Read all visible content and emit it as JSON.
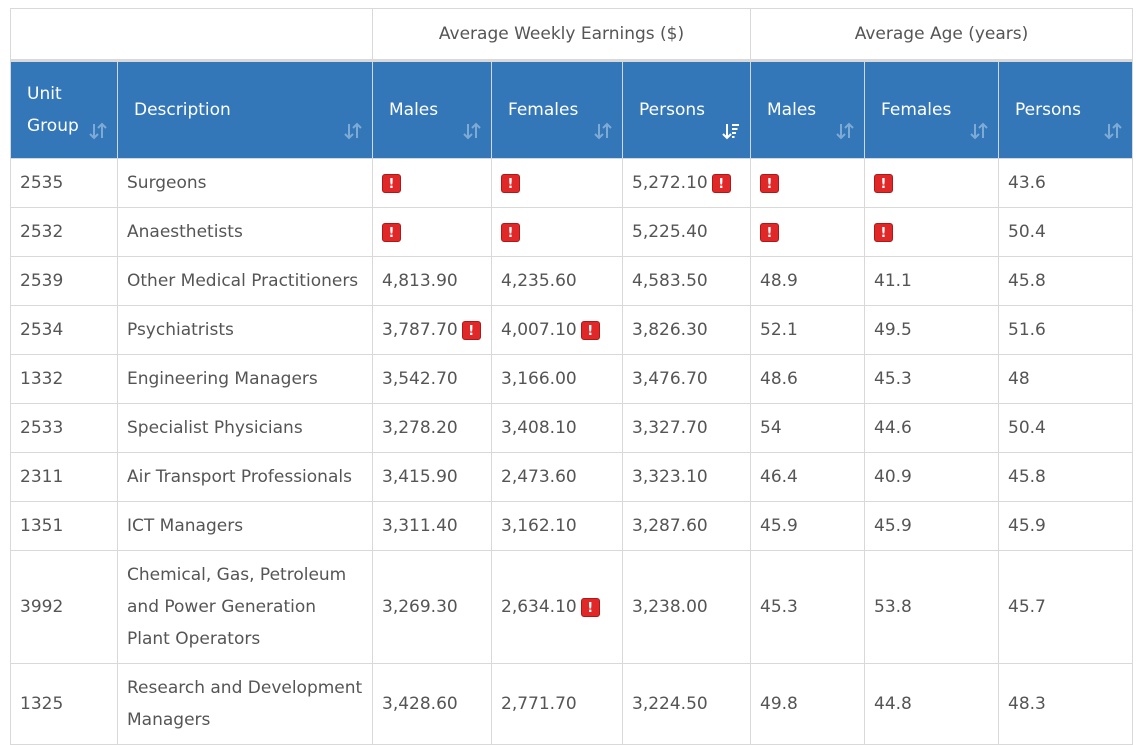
{
  "group_header": {
    "earnings": "Average Weekly Earnings ($)",
    "age": "Average Age (years)"
  },
  "columns": {
    "unit_group_line1": "Unit",
    "unit_group_line2": "Group",
    "description": "Description",
    "earn_males": "Males",
    "earn_females": "Females",
    "earn_persons": "Persons",
    "age_males": "Males",
    "age_females": "Females",
    "age_persons": "Persons"
  },
  "sort": {
    "active_column": "earn_persons",
    "direction": "descending"
  },
  "warning_glyph": "!",
  "colors": {
    "header_bg": "#3377b8",
    "warning": "#e02828"
  },
  "rows": [
    {
      "unit_group": "2535",
      "description": "Surgeons",
      "earn_males": "",
      "earn_females": "",
      "earn_persons": "5,272.10",
      "age_males": "",
      "age_females": "",
      "age_persons": "43.6"
    },
    {
      "unit_group": "2532",
      "description": "Anaesthetists",
      "earn_males": "",
      "earn_females": "",
      "earn_persons": "5,225.40",
      "age_males": "",
      "age_females": "",
      "age_persons": "50.4"
    },
    {
      "unit_group": "2539",
      "description": "Other Medical Practitioners",
      "earn_males": "4,813.90",
      "earn_females": "4,235.60",
      "earn_persons": "4,583.50",
      "age_males": "48.9",
      "age_females": "41.1",
      "age_persons": "45.8"
    },
    {
      "unit_group": "2534",
      "description": "Psychiatrists",
      "earn_males": "3,787.70",
      "earn_females": "4,007.10",
      "earn_persons": "3,826.30",
      "age_males": "52.1",
      "age_females": "49.5",
      "age_persons": "51.6"
    },
    {
      "unit_group": "1332",
      "description": "Engineering Managers",
      "earn_males": "3,542.70",
      "earn_females": "3,166.00",
      "earn_persons": "3,476.70",
      "age_males": "48.6",
      "age_females": "45.3",
      "age_persons": "48"
    },
    {
      "unit_group": "2533",
      "description": "Specialist Physicians",
      "earn_males": "3,278.20",
      "earn_females": "3,408.10",
      "earn_persons": "3,327.70",
      "age_males": "54",
      "age_females": "44.6",
      "age_persons": "50.4"
    },
    {
      "unit_group": "2311",
      "description": "Air Transport Professionals",
      "earn_males": "3,415.90",
      "earn_females": "2,473.60",
      "earn_persons": "3,323.10",
      "age_males": "46.4",
      "age_females": "40.9",
      "age_persons": "45.8"
    },
    {
      "unit_group": "1351",
      "description": "ICT Managers",
      "earn_males": "3,311.40",
      "earn_females": "3,162.10",
      "earn_persons": "3,287.60",
      "age_males": "45.9",
      "age_females": "45.9",
      "age_persons": "45.9"
    },
    {
      "unit_group": "3992",
      "description": "Chemical, Gas, Petroleum and Power Generation Plant Operators",
      "earn_males": "3,269.30",
      "earn_females": "2,634.10",
      "earn_persons": "3,238.00",
      "age_males": "45.3",
      "age_females": "53.8",
      "age_persons": "45.7"
    },
    {
      "unit_group": "1325",
      "description": "Research and Development Managers",
      "earn_males": "3,428.60",
      "earn_females": "2,771.70",
      "earn_persons": "3,224.50",
      "age_males": "49.8",
      "age_females": "44.8",
      "age_persons": "48.3"
    }
  ]
}
